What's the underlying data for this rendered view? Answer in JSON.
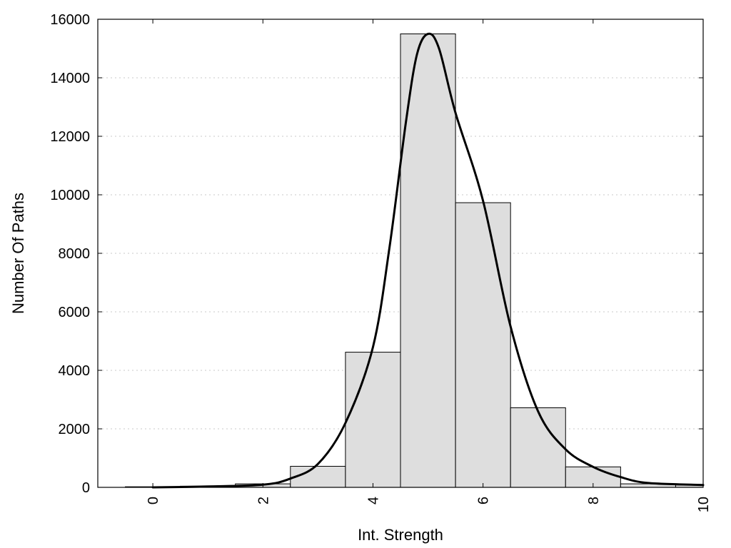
{
  "chart_data": {
    "type": "bar",
    "title": "",
    "xlabel": "Int. Strength",
    "ylabel": "Number Of Paths",
    "xlim": [
      -1,
      10
    ],
    "ylim": [
      0,
      16000
    ],
    "x_ticks": [
      0,
      2,
      4,
      6,
      8,
      10
    ],
    "y_ticks": [
      0,
      2000,
      4000,
      6000,
      8000,
      10000,
      12000,
      14000,
      16000
    ],
    "grid": "horizontal dotted",
    "bar_color": "#dedede",
    "bins": [
      {
        "center": 0,
        "value": 20
      },
      {
        "center": 1,
        "value": 40
      },
      {
        "center": 2,
        "value": 120
      },
      {
        "center": 3,
        "value": 720
      },
      {
        "center": 4,
        "value": 4620
      },
      {
        "center": 5,
        "value": 15500
      },
      {
        "center": 6,
        "value": 9730
      },
      {
        "center": 7,
        "value": 2720
      },
      {
        "center": 8,
        "value": 700
      },
      {
        "center": 9,
        "value": 120
      },
      {
        "center": 10,
        "value": 80
      }
    ],
    "curve": {
      "x": [
        0,
        1,
        2,
        2.5,
        3,
        3.5,
        4,
        4.3,
        4.6,
        4.8,
        5.0,
        5.2,
        5.5,
        6.0,
        6.5,
        7.0,
        7.5,
        8.0,
        8.5,
        9.0,
        10.0
      ],
      "y": [
        0,
        30,
        90,
        300,
        800,
        2200,
        4800,
        8200,
        12500,
        14800,
        15500,
        15000,
        12800,
        9800,
        5500,
        2600,
        1300,
        700,
        350,
        150,
        80
      ]
    }
  }
}
